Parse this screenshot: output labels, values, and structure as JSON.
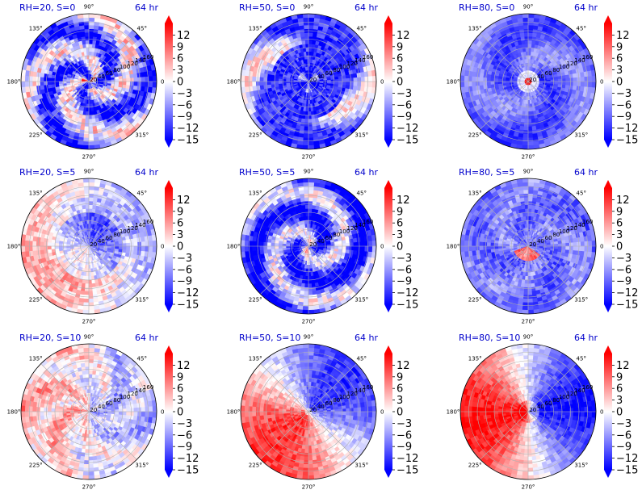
{
  "colors": {
    "title": "#0000cc",
    "neg": "#0000ff",
    "mid": "#ffffff",
    "pos": "#ff0000"
  },
  "chart_data": {
    "type": "heatmap",
    "projection": "polar",
    "layout": "3x3 grid",
    "colormap": "bwr",
    "colorbar_ticks": [
      12,
      9,
      6,
      3,
      0,
      -3,
      -6,
      -9,
      -12,
      -15
    ],
    "colorbar_extend": "both",
    "value_range": [
      -15,
      15
    ],
    "angular_tick_labels": [
      "90°",
      "45°",
      "0°",
      "315°",
      "270°",
      "225°",
      "180°",
      "135°"
    ],
    "radial_tick_labels": [
      "20",
      "40",
      "60",
      "80",
      "100",
      "120",
      "140",
      "160"
    ],
    "radial_range": [
      0,
      160
    ],
    "grid": true,
    "panels": [
      {
        "title": "RH=20, S=0",
        "time": "64 hr",
        "pattern": "mixed spiral, mostly blue"
      },
      {
        "title": "RH=50, S=0",
        "time": "64 hr",
        "pattern": "blue ring, red outer bands"
      },
      {
        "title": "RH=80, S=0",
        "time": "64 hr",
        "pattern": "uniform blue, red core"
      },
      {
        "title": "RH=20, S=5",
        "time": "64 hr",
        "pattern": "red west, blue east"
      },
      {
        "title": "RH=50, S=5",
        "time": "64 hr",
        "pattern": "blue spiral"
      },
      {
        "title": "RH=80, S=5",
        "time": "64 hr",
        "pattern": "mostly blue, red spots near center"
      },
      {
        "title": "RH=20, S=10",
        "time": "64 hr",
        "pattern": "weak red west, weak blue east"
      },
      {
        "title": "RH=50, S=10",
        "time": "64 hr",
        "pattern": "red southwest, blue northeast"
      },
      {
        "title": "RH=80, S=10",
        "time": "64 hr",
        "pattern": "red west, strong blue east"
      }
    ]
  }
}
